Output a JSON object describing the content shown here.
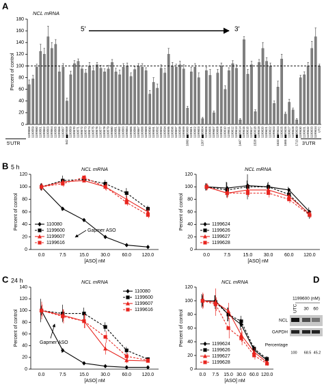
{
  "panels": {
    "labels": [
      "A",
      "B",
      "C",
      "D"
    ],
    "times": [
      "5 h",
      "24 h"
    ]
  },
  "chart_data": [
    {
      "type": "bar",
      "title": "NCL mRNA",
      "y_label": "Percent of control",
      "color": "#7f7f7f",
      "ylim": [
        0,
        180
      ],
      "yticks": [
        0,
        20,
        40,
        60,
        80,
        100,
        120,
        140,
        160,
        180
      ],
      "reference_line": 100,
      "arrow_labels": [
        "5′",
        "3′"
      ],
      "utr_labels": [
        "5′UTR",
        "3′UTR"
      ],
      "region_labels": [
        "542",
        "1060",
        "1207",
        "1447",
        "1528",
        "1633",
        "1665",
        "1713"
      ],
      "categories": [
        "1199558",
        "1199559",
        "1199560",
        "1199561",
        "1199562",
        "1199563",
        "1199564",
        "1199565",
        "1199566",
        "1199567",
        "1199568",
        "1199569",
        "1199570",
        "1199571",
        "1199572",
        "1199573",
        "1199574",
        "1199575",
        "1199576",
        "1199577",
        "1199578",
        "1199579",
        "1199580",
        "1199581",
        "1199582",
        "1199583",
        "1199584",
        "1199585",
        "1199586",
        "1199587",
        "1199588",
        "1199589",
        "1199590",
        "1199591",
        "1199592",
        "1199593",
        "1199594",
        "1199595",
        "1199596",
        "1199597",
        "1199598",
        "1199599",
        "1199600",
        "1199601",
        "1199602",
        "1199603",
        "1199604",
        "1199605",
        "1199606",
        "1199607",
        "1199608",
        "1199609",
        "1199610",
        "1199611",
        "1199612",
        "1199613",
        "1199614",
        "1199615",
        "1199616",
        "1199617",
        "1199618",
        "1199619",
        "1199620",
        "1199621",
        "1199622",
        "1199623",
        "1199624",
        "1199625",
        "1199626",
        "1199627",
        "1199628",
        "1199629",
        "1199630",
        "1199631",
        "1199632",
        "1199633",
        "1199634",
        "UTC"
      ],
      "values": [
        68,
        78,
        98,
        125,
        120,
        150,
        130,
        137,
        90,
        98,
        40,
        85,
        104,
        108,
        95,
        88,
        100,
        92,
        102,
        96,
        90,
        95,
        106,
        90,
        85,
        98,
        100,
        82,
        94,
        100,
        98,
        92,
        52,
        72,
        62,
        96,
        88,
        120,
        100,
        98,
        102,
        95,
        28,
        90,
        98,
        80,
        10,
        92,
        84,
        20,
        88,
        100,
        60,
        92,
        104,
        96,
        8,
        145,
        86,
        102,
        22,
        106,
        130,
        108,
        100,
        36,
        64,
        112,
        18,
        38,
        25,
        8,
        80,
        85,
        100,
        130,
        150,
        100
      ],
      "errors": [
        8,
        6,
        5,
        12,
        10,
        18,
        10,
        8,
        10,
        6,
        5,
        6,
        5,
        4,
        5,
        6,
        6,
        5,
        4,
        5,
        5,
        6,
        5,
        6,
        8,
        6,
        5,
        6,
        5,
        4,
        6,
        5,
        6,
        8,
        7,
        6,
        8,
        10,
        6,
        5,
        6,
        7,
        3,
        8,
        6,
        8,
        2,
        6,
        10,
        3,
        6,
        5,
        6,
        5,
        5,
        6,
        2,
        5,
        8,
        6,
        3,
        5,
        10,
        6,
        5,
        4,
        10,
        8,
        3,
        5,
        3,
        2,
        4,
        5,
        6,
        12,
        15,
        3
      ]
    },
    {
      "type": "line",
      "title": "NCL mRNA",
      "x_label": "[ASO] nM",
      "y_label": "Percent of control",
      "annotation": "Gapmer ASO",
      "legend": "lower left",
      "categories": [
        "0.0",
        "7.5",
        "15.0",
        "30.0",
        "60.0",
        "120.0"
      ],
      "ylim": [
        0,
        120
      ],
      "yticks": [
        0,
        20,
        40,
        60,
        80,
        100,
        120
      ],
      "series": [
        {
          "name": "110080",
          "color": "#000000",
          "dashed": false,
          "marker": "diamond",
          "values": [
            100,
            65,
            47,
            20,
            7,
            4
          ],
          "errors": [
            5,
            3,
            2,
            2,
            1,
            1
          ]
        },
        {
          "name": "1199600",
          "color": "#000000",
          "dashed": true,
          "marker": "square",
          "values": [
            100,
            110,
            112,
            105,
            90,
            65
          ],
          "errors": [
            6,
            8,
            5,
            6,
            8,
            5
          ]
        },
        {
          "name": "1199607",
          "color": "#e8251f",
          "dashed": false,
          "marker": "triangle",
          "values": [
            100,
            108,
            110,
            100,
            80,
            60
          ],
          "errors": [
            6,
            4,
            3,
            5,
            6,
            6
          ]
        },
        {
          "name": "1199616",
          "color": "#e8251f",
          "dashed": true,
          "marker": "square",
          "values": [
            100,
            105,
            115,
            100,
            75,
            55
          ],
          "errors": [
            5,
            5,
            4,
            6,
            5,
            5
          ]
        }
      ]
    },
    {
      "type": "line",
      "title": "NCL mRNA",
      "x_label": "[ASO] nM",
      "y_label": "Percent of control",
      "legend": "lower left",
      "categories": [
        "0.0",
        "7.5",
        "15.0",
        "30.0",
        "60.0",
        "120.0"
      ],
      "ylim": [
        0,
        120
      ],
      "yticks": [
        0,
        20,
        40,
        60,
        80,
        100,
        120
      ],
      "series": [
        {
          "name": "1199624",
          "color": "#000000",
          "dashed": false,
          "marker": "diamond",
          "values": [
            100,
            98,
            102,
            100,
            95,
            60
          ],
          "errors": [
            6,
            10,
            8,
            6,
            5,
            7
          ]
        },
        {
          "name": "1199626",
          "color": "#000000",
          "dashed": true,
          "marker": "square",
          "values": [
            100,
            95,
            100,
            100,
            88,
            55
          ],
          "errors": [
            5,
            12,
            20,
            8,
            6,
            6
          ]
        },
        {
          "name": "1199627",
          "color": "#e8251f",
          "dashed": false,
          "marker": "triangle",
          "values": [
            100,
            90,
            95,
            95,
            85,
            57
          ],
          "errors": [
            6,
            8,
            8,
            6,
            6,
            5
          ]
        },
        {
          "name": "1199628",
          "color": "#e8251f",
          "dashed": true,
          "marker": "square",
          "values": [
            100,
            90,
            90,
            90,
            80,
            55
          ],
          "errors": [
            5,
            6,
            6,
            7,
            6,
            5
          ]
        }
      ]
    },
    {
      "type": "line",
      "title": "NCL mRNA",
      "x_label": "[ASO] nM",
      "y_label": "Percent of control",
      "annotation": "Gapmer ASO",
      "legend": "upper right",
      "categories": [
        "0.0",
        "7.5",
        "15.0",
        "30.0",
        "60.0",
        "120.0"
      ],
      "ylim": [
        0,
        140
      ],
      "yticks": [
        0,
        20,
        40,
        60,
        80,
        100,
        120,
        140
      ],
      "series": [
        {
          "name": "110080",
          "color": "#000000",
          "dashed": false,
          "marker": "diamond",
          "values": [
            100,
            32,
            10,
            5,
            3,
            3
          ],
          "errors": [
            20,
            4,
            2,
            1,
            1,
            1
          ]
        },
        {
          "name": "1199600",
          "color": "#000000",
          "dashed": true,
          "marker": "square",
          "values": [
            100,
            95,
            95,
            72,
            32,
            17
          ],
          "errors": [
            8,
            15,
            10,
            8,
            6,
            3
          ]
        },
        {
          "name": "1199607",
          "color": "#e8251f",
          "dashed": false,
          "marker": "triangle",
          "values": [
            100,
            92,
            82,
            35,
            15,
            14
          ],
          "errors": [
            15,
            10,
            12,
            10,
            5,
            3
          ]
        },
        {
          "name": "1199616",
          "color": "#e8251f",
          "dashed": true,
          "marker": "square",
          "values": [
            100,
            90,
            82,
            55,
            22,
            15
          ],
          "errors": [
            10,
            12,
            12,
            10,
            6,
            3
          ]
        }
      ]
    },
    {
      "type": "line",
      "title": "NCL mRNA",
      "x_label": "[ASO] nM",
      "y_label": "Percent of control",
      "legend": "lower left",
      "categories": [
        "0.0",
        "7.5",
        "15.0",
        "30.0",
        "60.0",
        "120.0"
      ],
      "ylim": [
        0,
        120
      ],
      "yticks": [
        0,
        20,
        40,
        60,
        80,
        100,
        120
      ],
      "series": [
        {
          "name": "1199624",
          "color": "#000000",
          "dashed": false,
          "marker": "diamond",
          "values": [
            100,
            100,
            80,
            65,
            28,
            13
          ],
          "errors": [
            10,
            8,
            10,
            8,
            6,
            4
          ]
        },
        {
          "name": "1199626",
          "color": "#000000",
          "dashed": true,
          "marker": "square",
          "values": [
            100,
            98,
            80,
            70,
            30,
            15
          ],
          "errors": [
            8,
            10,
            10,
            8,
            5,
            4
          ]
        },
        {
          "name": "1199627",
          "color": "#e8251f",
          "dashed": false,
          "marker": "triangle",
          "values": [
            100,
            98,
            85,
            50,
            25,
            10
          ],
          "errors": [
            12,
            20,
            12,
            10,
            6,
            3
          ]
        },
        {
          "name": "1199628",
          "color": "#e8251f",
          "dashed": true,
          "marker": "square",
          "values": [
            100,
            95,
            60,
            45,
            20,
            8
          ],
          "errors": [
            10,
            10,
            15,
            10,
            6,
            3
          ]
        }
      ]
    }
  ],
  "panel_d": {
    "title": "1199600 (nM)",
    "lanes": [
      "UTC",
      "30",
      "60"
    ],
    "rows": [
      "NCL",
      "GAPDH"
    ],
    "percentage_label": "Percentage",
    "percentages": [
      100,
      68.5,
      45.2
    ]
  }
}
